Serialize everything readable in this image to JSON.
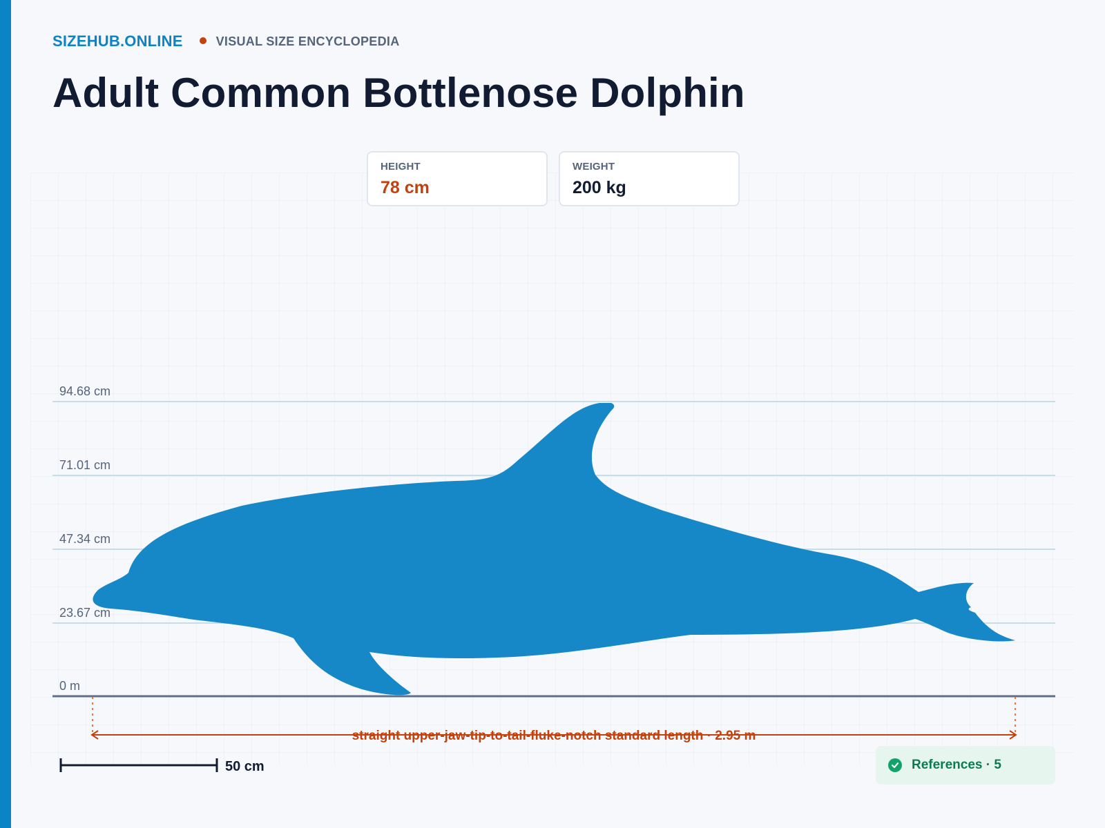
{
  "header": {
    "brand": "SIZEHUB.ONLINE",
    "tagline": "VISUAL SIZE ENCYCLOPEDIA",
    "title": "Adult Common Bottlenose Dolphin"
  },
  "stats": {
    "height": {
      "label": "HEIGHT",
      "value": "78 cm"
    },
    "weight": {
      "label": "WEIGHT",
      "value": "200 kg"
    }
  },
  "height_guides": [
    "94.68 cm",
    "71.01 cm",
    "47.34 cm",
    "23.67 cm",
    "0 m"
  ],
  "length": {
    "label": "straight upper-jaw-tip-to-tail-fluke-notch standard length · 2.95 m"
  },
  "scale_bar": {
    "label": "50 cm"
  },
  "references": {
    "label": "References · 5"
  },
  "colors": {
    "accent": "#0b84c6",
    "silhouette": "#1788c7",
    "highlight": "#c2410c",
    "reference_green": "#10a36a"
  },
  "icons": {
    "brand_separator": "dot-icon",
    "references": "check-circle-icon"
  }
}
